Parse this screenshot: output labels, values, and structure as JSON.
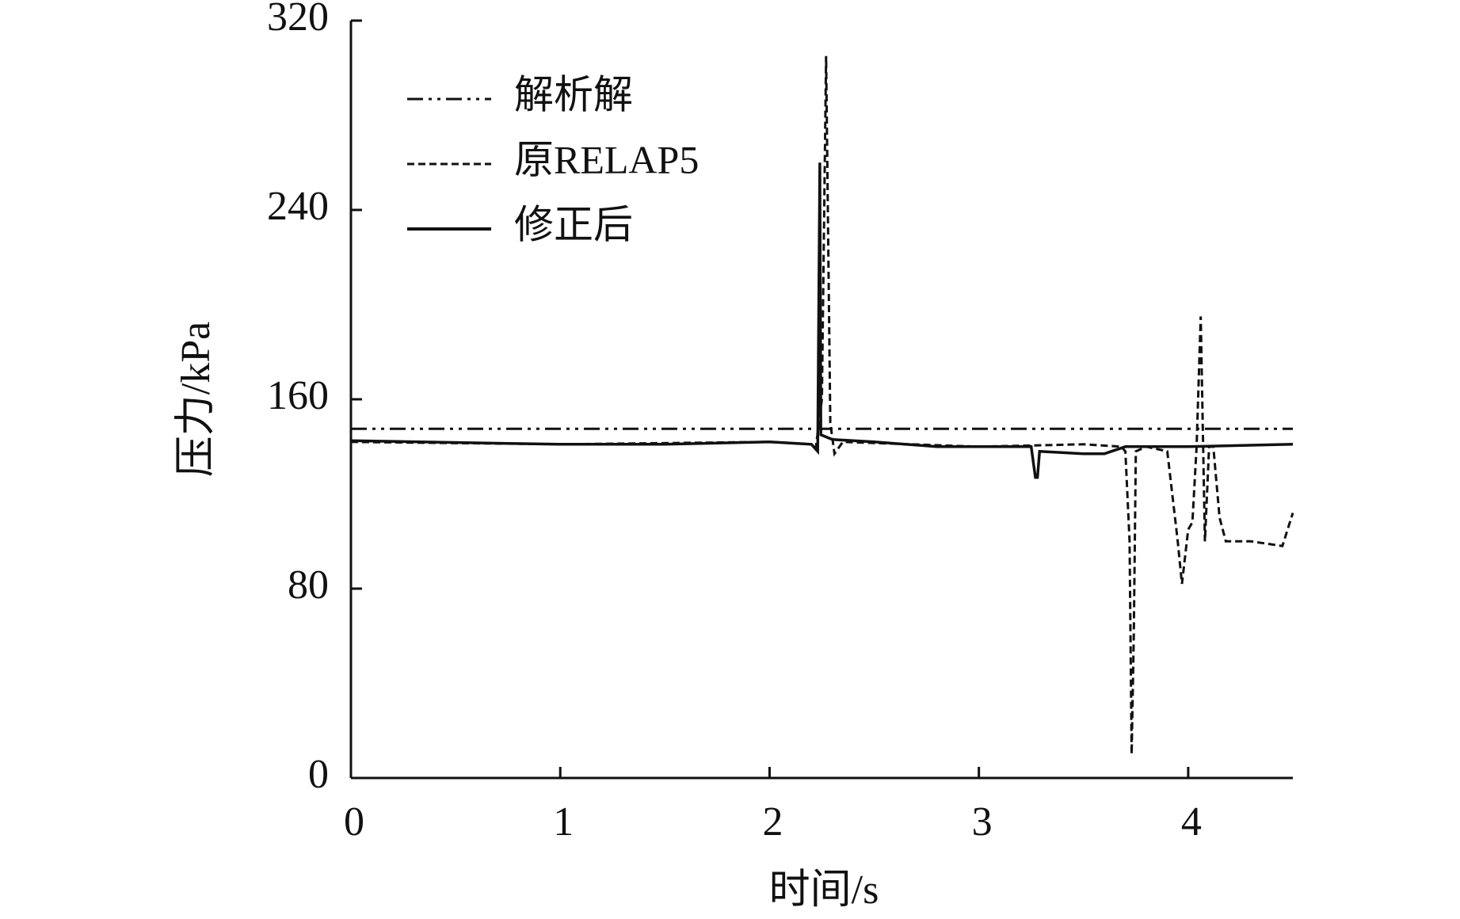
{
  "chart_data": {
    "type": "line",
    "x_label": "时间/s",
    "y_label": "压力/kPa",
    "xlim": [
      0,
      4.5
    ],
    "xticks": [
      0,
      1,
      2,
      3,
      4
    ],
    "ylim": [
      0,
      320
    ],
    "yticks": [
      0,
      80,
      160,
      240,
      320
    ],
    "legend": "upper-left",
    "series": [
      {
        "name": "解析解",
        "color": "#111111",
        "dash": "dash-dot-dot",
        "x": [
          0,
          4.5
        ],
        "values": [
          147.5,
          147.5
        ]
      },
      {
        "name": "原RELAP5",
        "color": "#111111",
        "dash": "dashed",
        "x": [
          0,
          1,
          2,
          2.2,
          2.22,
          2.25,
          2.27,
          2.29,
          2.31,
          2.35,
          3,
          3.5,
          3.68,
          3.7,
          3.72,
          3.73,
          3.74,
          3.75,
          3.8,
          3.9,
          3.95,
          3.97,
          4.0,
          4.02,
          4.04,
          4.06,
          4.08,
          4.1,
          4.12,
          4.15,
          4.18,
          4.3,
          4.45,
          4.5
        ],
        "values": [
          142,
          141,
          142,
          141,
          139,
          160,
          305,
          150,
          137,
          142,
          140,
          141,
          140,
          138,
          100,
          10,
          60,
          138,
          140,
          138,
          100,
          82,
          105,
          108,
          140,
          195,
          100,
          140,
          140,
          110,
          100,
          100,
          98,
          112
        ]
      },
      {
        "name": "修正后",
        "color": "#111111",
        "dash": "solid",
        "x": [
          0,
          1,
          1.5,
          2,
          2.2,
          2.23,
          2.24,
          2.245,
          2.3,
          2.5,
          2.8,
          3.0,
          3.25,
          3.27,
          3.28,
          3.29,
          3.5,
          3.6,
          3.7,
          4,
          4.5
        ],
        "values": [
          142.5,
          141,
          141,
          142,
          141,
          138,
          260,
          145,
          143,
          142,
          140,
          140,
          140,
          127,
          127,
          138,
          137,
          137,
          140,
          140,
          141
        ]
      }
    ]
  }
}
